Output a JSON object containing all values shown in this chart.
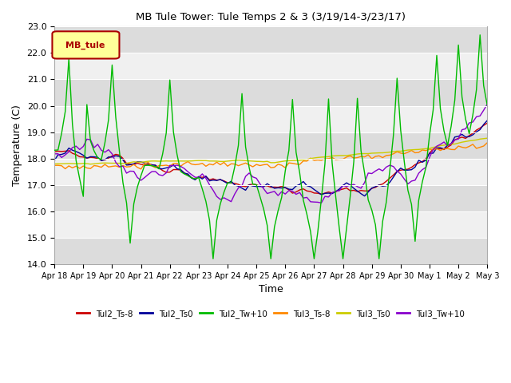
{
  "title": "MB Tule Tower: Tule Temps 2 & 3 (3/19/14-3/23/17)",
  "xlabel": "Time",
  "ylabel": "Temperature (C)",
  "ylim": [
    14.0,
    23.0
  ],
  "yticks": [
    14.0,
    15.0,
    16.0,
    17.0,
    18.0,
    19.0,
    20.0,
    21.0,
    22.0,
    23.0
  ],
  "legend_label": "MB_tule",
  "legend_box_color": "#ffff99",
  "legend_box_edge": "#aa0000",
  "series_labels": [
    "Tul2_Ts-8",
    "Tul2_Ts0",
    "Tul2_Tw+10",
    "Tul3_Ts-8",
    "Tul3_Ts0",
    "Tul3_Tw+10"
  ],
  "series_colors": [
    "#cc0000",
    "#000099",
    "#00bb00",
    "#ff8800",
    "#cccc00",
    "#8800cc"
  ],
  "bg_color": "#f0f0f0",
  "stripe_color": "#dcdcdc",
  "num_days": 15,
  "tick_labels": [
    "Apr 18",
    "Apr 19",
    "Apr 20",
    "Apr 21",
    "Apr 22",
    "Apr 23",
    "Apr 24",
    "Apr 25",
    "Apr 26",
    "Apr 27",
    "Apr 28",
    "Apr 29",
    "Apr 30",
    "May 1",
    "May 2",
    "May 3"
  ]
}
